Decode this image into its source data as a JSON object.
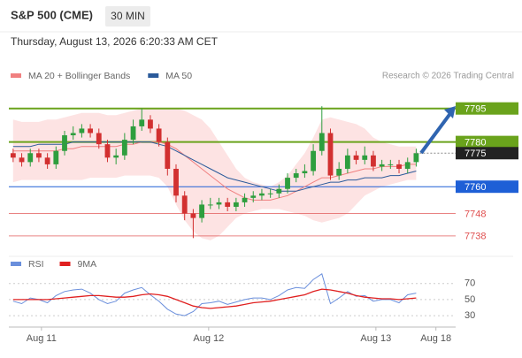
{
  "header": {
    "symbol": "S&P 500 (CME)",
    "interval": "30 MIN",
    "datetime": "Thursday, August 13, 2026 6:20:33 AM CET"
  },
  "chart_data": [
    {
      "type": "candlestick",
      "credit": "Research © 2026 Trading Central",
      "xlim": [
        -0.5,
        51.6
      ],
      "ylim": [
        7732,
        7802
      ],
      "xticks": [
        {
          "value": 3.3,
          "label": "Aug 11"
        },
        {
          "value": 22.8,
          "label": "Aug 12"
        },
        {
          "value": 42.3,
          "label": "Aug 13"
        },
        {
          "value": 49.3,
          "label": "Aug 18"
        }
      ],
      "candles": {
        "up_color": "#2e9e3e",
        "down_color": "#d23030",
        "open": [
          7775,
          7773,
          7771,
          7775,
          7773,
          7770,
          7776,
          7783,
          7784,
          7786,
          7784,
          7779,
          7773,
          7774,
          7781,
          7787,
          7790,
          7786,
          7780,
          7768,
          7756,
          7748,
          7746,
          7752,
          7752,
          7753,
          7751,
          7753,
          7755,
          7756,
          7757,
          7757,
          7759,
          7764,
          7766,
          7767,
          7776,
          7784,
          7765,
          7768,
          7774,
          7772,
          7774,
          7769,
          7770,
          7770,
          7768,
          7771
        ],
        "high": [
          7777,
          7775,
          7777,
          7777,
          7775,
          7778,
          7785,
          7787,
          7788,
          7788,
          7786,
          7781,
          7777,
          7784,
          7790,
          7795,
          7792,
          7788,
          7782,
          7770,
          7758,
          7750,
          7754,
          7755,
          7755,
          7755,
          7755,
          7757,
          7758,
          7759,
          7759,
          7761,
          7766,
          7768,
          7770,
          7779,
          7796,
          7786,
          7771,
          7777,
          7776,
          7778,
          7776,
          7772,
          7772,
          7772,
          7773,
          7777
        ],
        "low": [
          7771,
          7769,
          7769,
          7771,
          7768,
          7768,
          7774,
          7781,
          7782,
          7782,
          7777,
          7771,
          7770,
          7772,
          7779,
          7785,
          7784,
          7778,
          7765,
          7753,
          7745,
          7737,
          7744,
          7750,
          7750,
          7749,
          7749,
          7751,
          7753,
          7754,
          7755,
          7755,
          7757,
          7762,
          7764,
          7765,
          7774,
          7763,
          7763,
          7766,
          7770,
          7770,
          7767,
          7767,
          7768,
          7766,
          7766,
          7769
        ],
        "close": [
          7773,
          7771,
          7775,
          7773,
          7770,
          7776,
          7783,
          7784,
          7786,
          7784,
          7779,
          7773,
          7774,
          7781,
          7787,
          7790,
          7786,
          7780,
          7768,
          7756,
          7748,
          7746,
          7752,
          7752,
          7753,
          7751,
          7753,
          7755,
          7756,
          7757,
          7757,
          7759,
          7764,
          7766,
          7767,
          7776,
          7784,
          7765,
          7768,
          7774,
          7772,
          7774,
          7769,
          7770,
          7770,
          7768,
          7771,
          7775
        ]
      },
      "series": [
        {
          "name": "MA 20 + Bollinger Bands",
          "color": "#f08080",
          "band_color": "#fde3e3",
          "values": [
            7776,
            7776,
            7776,
            7776,
            7776,
            7776,
            7777,
            7777,
            7778,
            7778,
            7778,
            7778,
            7778,
            7779,
            7779,
            7780,
            7780,
            7780,
            7779,
            7777,
            7774,
            7771,
            7768,
            7765,
            7762,
            7759,
            7757,
            7755,
            7754,
            7754,
            7754,
            7755,
            7756,
            7758,
            7760,
            7762,
            7764,
            7764,
            7765,
            7766,
            7767,
            7768,
            7768,
            7769,
            7769,
            7769,
            7770,
            7770
          ],
          "upper": [
            7790,
            7789,
            7789,
            7789,
            7790,
            7790,
            7791,
            7792,
            7793,
            7793,
            7793,
            7792,
            7792,
            7793,
            7794,
            7795,
            7795,
            7795,
            7795,
            7795,
            7794,
            7792,
            7790,
            7786,
            7780,
            7774,
            7768,
            7764,
            7762,
            7761,
            7760,
            7762,
            7765,
            7770,
            7775,
            7782,
            7790,
            7791,
            7790,
            7789,
            7788,
            7786,
            7782,
            7780,
            7779,
            7778,
            7778,
            7778
          ],
          "lower": [
            7762,
            7763,
            7763,
            7763,
            7763,
            7763,
            7763,
            7763,
            7763,
            7764,
            7764,
            7764,
            7764,
            7765,
            7765,
            7765,
            7765,
            7764,
            7760,
            7752,
            7745,
            7740,
            7737,
            7736,
            7738,
            7742,
            7746,
            7748,
            7749,
            7750,
            7750,
            7750,
            7749,
            7748,
            7747,
            7745,
            7744,
            7745,
            7746,
            7748,
            7752,
            7756,
            7758,
            7760,
            7761,
            7762,
            7763,
            7763
          ]
        },
        {
          "name": "MA 50",
          "color": "#2a5a9a",
          "values": [
            7778,
            7778,
            7778,
            7779,
            7779,
            7779,
            7779,
            7780,
            7780,
            7780,
            7780,
            7780,
            7780,
            7780,
            7780,
            7780,
            7780,
            7779,
            7778,
            7776,
            7774,
            7772,
            7770,
            7768,
            7766,
            7764,
            7763,
            7762,
            7761,
            7760,
            7759,
            7758,
            7758,
            7758,
            7759,
            7760,
            7761,
            7762,
            7762,
            7763,
            7763,
            7764,
            7764,
            7764,
            7765,
            7765,
            7766,
            7767
          ]
        }
      ],
      "levels": [
        {
          "value": 7795,
          "color": "#6aa31c",
          "style": "box"
        },
        {
          "value": 7780,
          "color": "#6aa31c",
          "style": "box"
        },
        {
          "value": 7760,
          "color": "#1e5fd6",
          "style": "box"
        },
        {
          "value": 7748,
          "color": "#e05050",
          "style": "text"
        },
        {
          "value": 7738,
          "color": "#e05050",
          "style": "text"
        }
      ],
      "last_price": {
        "value": 7775,
        "color": "#222222"
      }
    },
    {
      "type": "line",
      "xlim": [
        -0.5,
        51.6
      ],
      "ylim": [
        18,
        84
      ],
      "yticks": [
        70,
        50,
        30
      ],
      "series": [
        {
          "name": "RSI",
          "color": "#6a8fdc",
          "values": [
            48,
            45,
            52,
            50,
            46,
            55,
            60,
            62,
            63,
            58,
            50,
            45,
            48,
            58,
            62,
            65,
            56,
            48,
            38,
            32,
            30,
            35,
            45,
            46,
            48,
            44,
            47,
            50,
            52,
            52,
            50,
            55,
            62,
            65,
            64,
            75,
            82,
            45,
            52,
            60,
            54,
            55,
            48,
            50,
            50,
            46,
            56,
            58
          ]
        },
        {
          "name": "9MA",
          "color": "#e02020",
          "values": [
            50,
            50,
            50,
            50,
            50,
            51,
            52,
            53,
            54,
            55,
            55,
            54,
            53,
            53,
            54,
            56,
            57,
            56,
            54,
            50,
            46,
            42,
            40,
            39,
            40,
            41,
            42,
            44,
            46,
            47,
            48,
            50,
            52,
            54,
            56,
            60,
            63,
            62,
            60,
            58,
            55,
            53,
            52,
            51,
            51,
            50,
            51,
            52
          ]
        }
      ]
    }
  ]
}
